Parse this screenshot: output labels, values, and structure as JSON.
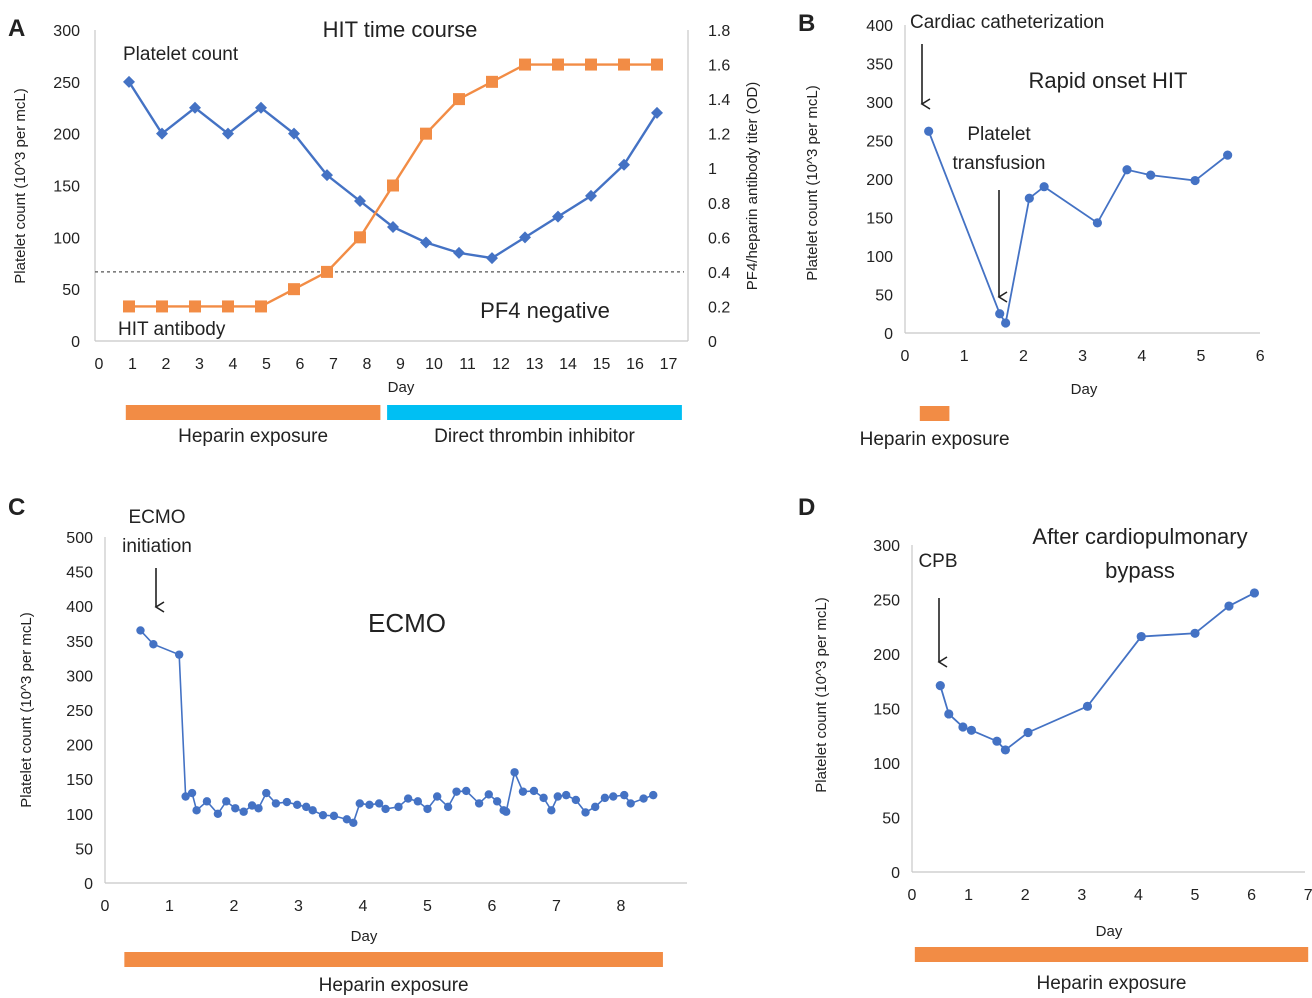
{
  "colors": {
    "blue": "#4472C4",
    "orange": "#F28C45",
    "cyan": "#00BFF3",
    "text": "#222222",
    "axis": "#c8c8c8"
  },
  "chart_data": [
    {
      "panel": "A",
      "type": "line",
      "title": "HIT time course",
      "xlabel": "Day",
      "ylabel": "Platelet count (10^3 per mcL)",
      "y2label": "PF4/heparin antibody titer (OD)",
      "x_ticks": [
        "0",
        "1",
        "2",
        "3",
        "4",
        "5",
        "6",
        "7",
        "8",
        "9",
        "10",
        "11",
        "12",
        "13",
        "14",
        "15",
        "16",
        "17"
      ],
      "y_ticks": [
        "0",
        "50",
        "100",
        "150",
        "200",
        "250",
        "300"
      ],
      "y2_ticks": [
        "0",
        "0.2",
        "0.4",
        "0.6",
        "0.8",
        "1",
        "1.2",
        "1.4",
        "1.6",
        "1.8"
      ],
      "xlim": [
        0,
        17.5
      ],
      "ylim": [
        0,
        300
      ],
      "y2lim": [
        0,
        1.8
      ],
      "threshold": 0.4,
      "series": [
        {
          "name": "Platelet count",
          "axis": "left",
          "marker": "diamond",
          "color": "#4472C4",
          "x": [
            1,
            2,
            3,
            4,
            5,
            6,
            7,
            8,
            9,
            10,
            11,
            12,
            13,
            14,
            15,
            16,
            17
          ],
          "values": [
            250,
            200,
            225,
            200,
            225,
            200,
            160,
            135,
            110,
            95,
            85,
            80,
            100,
            120,
            140,
            170,
            220
          ]
        },
        {
          "name": "HIT antibody",
          "axis": "right",
          "marker": "square",
          "color": "#F28C45",
          "x": [
            1,
            2,
            3,
            4,
            5,
            6,
            7,
            8,
            9,
            10,
            11,
            12,
            13,
            14,
            15,
            16,
            17
          ],
          "values": [
            0.2,
            0.2,
            0.2,
            0.2,
            0.2,
            0.3,
            0.4,
            0.6,
            0.9,
            1.2,
            1.4,
            1.5,
            1.6,
            1.6,
            1.6,
            1.6,
            1.6
          ]
        }
      ],
      "annotations": [
        "PF4 negative"
      ],
      "bars": [
        {
          "label": "Heparin exposure",
          "color": "#F28C45",
          "from": 0.8,
          "to": 8.4
        },
        {
          "label": "Direct thrombin inhibitor",
          "color": "#00BFF3",
          "from": 8.6,
          "to": 17.4
        }
      ]
    },
    {
      "panel": "B",
      "type": "line",
      "title": "Rapid onset HIT",
      "xlabel": "Day",
      "ylabel": "Platelet count (10^3 per mcL)",
      "x_ticks": [
        "0",
        "1",
        "2",
        "3",
        "4",
        "5",
        "6"
      ],
      "y_ticks": [
        "0",
        "50",
        "100",
        "150",
        "200",
        "250",
        "300",
        "350",
        "400"
      ],
      "xlim": [
        0,
        6
      ],
      "ylim": [
        0,
        400
      ],
      "series": [
        {
          "marker": "circle",
          "color": "#4472C4",
          "x": [
            0.4,
            1.6,
            1.7,
            2.1,
            2.35,
            3.25,
            3.75,
            4.15,
            4.9,
            5.45
          ],
          "values": [
            262,
            25,
            13,
            175,
            190,
            143,
            212,
            205,
            198,
            231
          ]
        }
      ],
      "annotations": [
        {
          "text": [
            "Cardiac catheterization"
          ],
          "x": 0.3,
          "y": 300
        },
        {
          "text": [
            "Platelet",
            "transfusion"
          ],
          "x": 1.65,
          "y": 40
        }
      ],
      "bars": [
        {
          "label": "Heparin exposure",
          "color": "#F28C45",
          "from": 0.25,
          "to": 0.75
        }
      ]
    },
    {
      "panel": "C",
      "type": "line",
      "title": "ECMO",
      "xlabel": "Day",
      "ylabel": "Platelet count (10^3 per mcL)",
      "x_ticks": [
        "0",
        "1",
        "2",
        "3",
        "4",
        "5",
        "6",
        "7",
        "8"
      ],
      "y_ticks": [
        "0",
        "50",
        "100",
        "150",
        "200",
        "250",
        "300",
        "350",
        "400",
        "450",
        "500"
      ],
      "xlim": [
        0,
        8.9
      ],
      "ylim": [
        0,
        500
      ],
      "series": [
        {
          "marker": "circle",
          "color": "#4472C4",
          "x": [
            0.55,
            0.75,
            1.15,
            1.25,
            1.35,
            1.42,
            1.58,
            1.75,
            1.88,
            2.02,
            2.15,
            2.28,
            2.38,
            2.5,
            2.65,
            2.82,
            2.98,
            3.12,
            3.22,
            3.38,
            3.55,
            3.75,
            3.85,
            3.95,
            4.1,
            4.25,
            4.35,
            4.55,
            4.7,
            4.85,
            5.0,
            5.15,
            5.32,
            5.45,
            5.6,
            5.8,
            5.95,
            6.08,
            6.18,
            6.22,
            6.35,
            6.48,
            6.65,
            6.8,
            6.92,
            7.02,
            7.15,
            7.3,
            7.45,
            7.6,
            7.75,
            7.88,
            8.05,
            8.15,
            8.35,
            8.5
          ],
          "values": [
            365,
            345,
            330,
            125,
            130,
            105,
            118,
            100,
            118,
            108,
            103,
            112,
            108,
            130,
            115,
            117,
            113,
            110,
            105,
            98,
            97,
            92,
            87,
            115,
            113,
            115,
            107,
            110,
            122,
            118,
            107,
            125,
            110,
            132,
            133,
            115,
            128,
            118,
            105,
            103,
            160,
            132,
            133,
            123,
            105,
            125,
            127,
            120,
            102,
            110,
            123,
            125,
            127,
            115,
            122,
            127
          ]
        }
      ],
      "annotations": [
        {
          "text": [
            "ECMO",
            "initiation"
          ],
          "x": 0.75,
          "y": 400
        }
      ],
      "bars": [
        {
          "label": "Heparin exposure",
          "color": "#F28C45",
          "from": 0.3,
          "to": 8.65
        }
      ]
    },
    {
      "panel": "D",
      "type": "line",
      "title": "After cardiopulmonary bypass",
      "xlabel": "Day",
      "ylabel": "Platelet count (10^3 per mcL)",
      "x_ticks": [
        "0",
        "1",
        "2",
        "3",
        "4",
        "5",
        "6",
        "7"
      ],
      "y_ticks": [
        "0",
        "50",
        "100",
        "150",
        "200",
        "250",
        "300"
      ],
      "xlim": [
        0,
        7
      ],
      "ylim": [
        0,
        300
      ],
      "series": [
        {
          "marker": "circle",
          "color": "#4472C4",
          "x": [
            0.5,
            0.65,
            0.9,
            1.05,
            1.5,
            1.65,
            2.05,
            3.1,
            4.05,
            5.0,
            5.6,
            6.05
          ],
          "values": [
            171,
            145,
            133,
            130,
            120,
            112,
            128,
            152,
            216,
            219,
            244,
            256
          ]
        }
      ],
      "annotations": [
        {
          "text": [
            "CPB"
          ],
          "x": 0.45,
          "y": 190
        }
      ],
      "bars": [
        {
          "label": "Heparin exposure",
          "color": "#F28C45",
          "from": 0.05,
          "to": 7.0
        }
      ]
    }
  ]
}
